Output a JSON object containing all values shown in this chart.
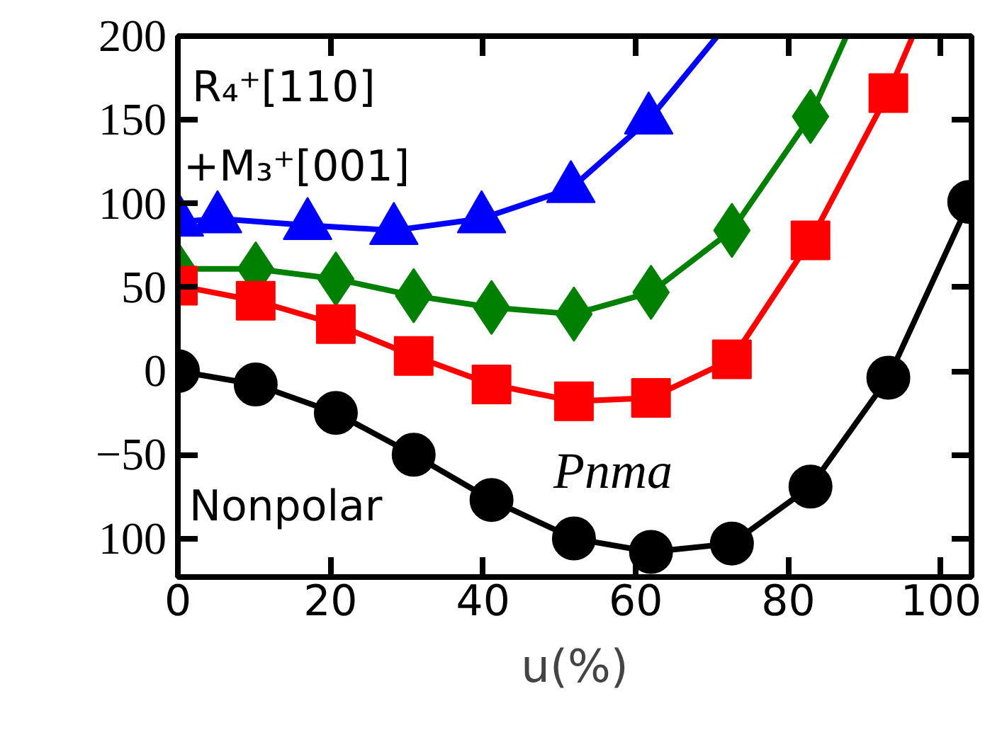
{
  "chart_data": {
    "type": "line",
    "xlabel": "u(%)",
    "xlim": [
      0,
      104
    ],
    "xticks": [
      0,
      20,
      40,
      60,
      80,
      100
    ],
    "ylim": [
      -123,
      200
    ],
    "yticks": [
      {
        "value": -100,
        "label": "100"
      },
      -50,
      0,
      50,
      100,
      150,
      200
    ],
    "tick_labels": "xy",
    "grid": false,
    "line_style": "solid",
    "series": [
      {
        "color": "#0000ff",
        "marker": "triangle",
        "x": [
          0.2,
          5.2,
          17,
          28.3,
          39.8,
          51.5,
          61.7,
          70.7
        ],
        "values": [
          89,
          91,
          87,
          84,
          91,
          109,
          150,
          200
        ]
      },
      {
        "color": "#008000",
        "marker": "diamond",
        "x": [
          0,
          10.2,
          20.7,
          30.9,
          41.1,
          51.9,
          62,
          72.6,
          82.9,
          87.6
        ],
        "values": [
          61,
          61,
          55,
          45,
          38,
          34,
          47,
          84,
          152,
          200
        ]
      },
      {
        "color": "#ff0000",
        "marker": "square",
        "x": [
          0,
          10.2,
          20.7,
          30.9,
          41.1,
          51.9,
          62,
          72.6,
          82.9,
          93.1,
          96.3
        ],
        "values": [
          51,
          42,
          28,
          9,
          -8,
          -18,
          -16,
          7,
          78,
          166,
          200
        ]
      },
      {
        "color": "#000000",
        "marker": "circle",
        "x": [
          0,
          10.2,
          20.7,
          30.9,
          41.1,
          51.9,
          62,
          72.6,
          82.9,
          93.1,
          103.7
        ],
        "values": [
          0,
          -8,
          -25,
          -50,
          -77,
          -100,
          -108,
          -103,
          -69,
          -4,
          101
        ]
      }
    ],
    "annotations": [
      "R₄⁺[110]",
      "+M₃⁺[001]",
      "Nonpolar",
      "Pnma"
    ]
  }
}
